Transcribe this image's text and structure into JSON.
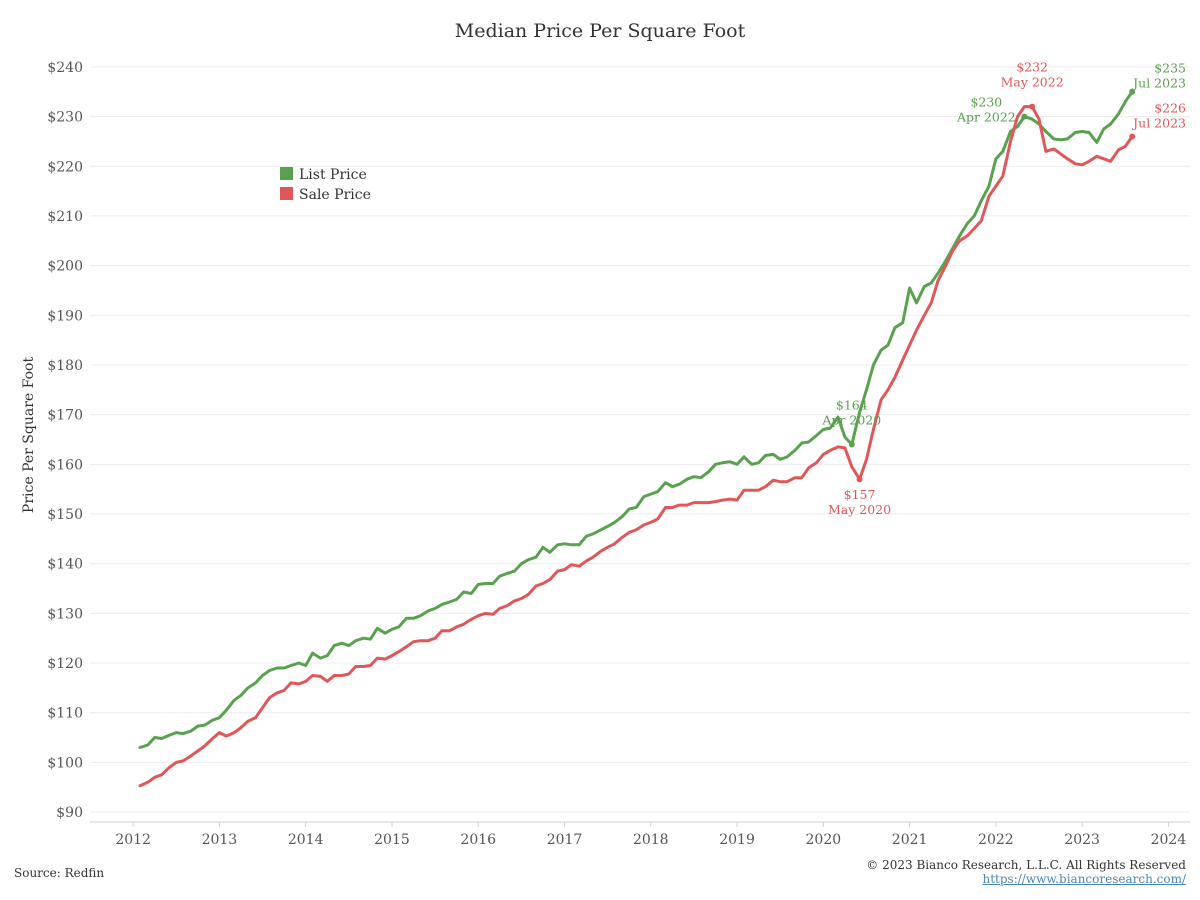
{
  "chart_data": {
    "type": "line",
    "title": "Median Price Per Square Foot",
    "xlabel": "",
    "ylabel": "Price Per Square Foot",
    "ylim": [
      88,
      243
    ],
    "xlim": [
      2011.5,
      2024.25
    ],
    "x_ticks": [
      "2012",
      "2013",
      "2014",
      "2015",
      "2016",
      "2017",
      "2018",
      "2019",
      "2020",
      "2021",
      "2022",
      "2023",
      "2024"
    ],
    "y_ticks": [
      "$90",
      "$100",
      "$110",
      "$120",
      "$130",
      "$140",
      "$150",
      "$160",
      "$170",
      "$180",
      "$190",
      "$200",
      "$210",
      "$220",
      "$230",
      "$240"
    ],
    "grid": true,
    "legend_position": "upper-left",
    "series": [
      {
        "name": "List Price",
        "color": "#59a14f",
        "x": [
          2012.08,
          2012.17,
          2012.25,
          2012.33,
          2012.42,
          2012.5,
          2012.58,
          2012.67,
          2012.75,
          2012.83,
          2012.92,
          2013.0,
          2013.08,
          2013.17,
          2013.25,
          2013.33,
          2013.42,
          2013.5,
          2013.58,
          2013.67,
          2013.75,
          2013.83,
          2013.92,
          2014.0,
          2014.08,
          2014.17,
          2014.25,
          2014.33,
          2014.42,
          2014.5,
          2014.58,
          2014.67,
          2014.75,
          2014.83,
          2014.92,
          2015.0,
          2015.08,
          2015.17,
          2015.25,
          2015.33,
          2015.42,
          2015.5,
          2015.58,
          2015.67,
          2015.75,
          2015.83,
          2015.92,
          2016.0,
          2016.08,
          2016.17,
          2016.25,
          2016.33,
          2016.42,
          2016.5,
          2016.58,
          2016.67,
          2016.75,
          2016.83,
          2016.92,
          2017.0,
          2017.08,
          2017.17,
          2017.25,
          2017.33,
          2017.42,
          2017.5,
          2017.58,
          2017.67,
          2017.75,
          2017.83,
          2017.92,
          2018.0,
          2018.08,
          2018.17,
          2018.25,
          2018.33,
          2018.42,
          2018.5,
          2018.58,
          2018.67,
          2018.75,
          2018.83,
          2018.92,
          2019.0,
          2019.08,
          2019.17,
          2019.25,
          2019.33,
          2019.42,
          2019.5,
          2019.58,
          2019.67,
          2019.75,
          2019.83,
          2019.92,
          2020.0,
          2020.08,
          2020.17,
          2020.25,
          2020.33,
          2020.42,
          2020.5,
          2020.58,
          2020.67,
          2020.75,
          2020.83,
          2020.92,
          2021.0,
          2021.08,
          2021.17,
          2021.25,
          2021.33,
          2021.42,
          2021.5,
          2021.58,
          2021.67,
          2021.75,
          2021.83,
          2021.92,
          2022.0,
          2022.08,
          2022.17,
          2022.25,
          2022.33,
          2022.42,
          2022.5,
          2022.58,
          2022.67,
          2022.75,
          2022.83,
          2022.92,
          2023.0,
          2023.08,
          2023.17,
          2023.25,
          2023.33,
          2023.42,
          2023.5,
          2023.58
        ],
        "values": [
          103,
          103.5,
          105,
          104.8,
          105.5,
          106,
          105.8,
          106.3,
          107.3,
          107.5,
          108.5,
          109,
          110.5,
          112.5,
          113.5,
          115,
          116,
          117.5,
          118.5,
          119,
          119,
          119.5,
          120,
          119.5,
          122,
          121,
          121.5,
          123.5,
          124,
          123.5,
          124.5,
          125,
          124.8,
          127,
          126,
          126.8,
          127.3,
          129,
          129,
          129.5,
          130.5,
          131,
          131.8,
          132.3,
          132.8,
          134.3,
          134,
          135.8,
          136,
          136,
          137.5,
          138,
          138.5,
          140,
          140.8,
          141.3,
          143.3,
          142.3,
          143.8,
          144,
          143.8,
          143.8,
          145.5,
          146,
          146.8,
          147.5,
          148.3,
          149.5,
          151,
          151.3,
          153.5,
          154,
          154.5,
          156.3,
          155.5,
          156,
          157,
          157.5,
          157.3,
          158.5,
          160,
          160.3,
          160.5,
          160,
          161.5,
          160,
          160.3,
          161.8,
          162,
          161,
          161.5,
          162.8,
          164.3,
          164.5,
          165.8,
          167,
          167.3,
          169.5,
          165.5,
          164,
          170.5,
          175,
          180,
          183,
          184,
          187.5,
          188.5,
          195.5,
          192.5,
          195.8,
          196.5,
          198.5,
          201,
          203.5,
          206,
          208.5,
          210,
          213,
          216,
          221.5,
          223,
          227,
          228,
          230,
          229.5,
          228.5,
          227,
          225.5,
          225.3,
          225.5,
          226.8,
          227,
          226.8,
          224.8,
          227.5,
          228.5,
          230.5,
          233,
          235
        ]
      },
      {
        "name": "Sale Price",
        "color": "#e15759",
        "x": [
          2012.08,
          2012.17,
          2012.25,
          2012.33,
          2012.42,
          2012.5,
          2012.58,
          2012.67,
          2012.75,
          2012.83,
          2012.92,
          2013.0,
          2013.08,
          2013.17,
          2013.25,
          2013.33,
          2013.42,
          2013.5,
          2013.58,
          2013.67,
          2013.75,
          2013.83,
          2013.92,
          2014.0,
          2014.08,
          2014.17,
          2014.25,
          2014.33,
          2014.42,
          2014.5,
          2014.58,
          2014.67,
          2014.75,
          2014.83,
          2014.92,
          2015.0,
          2015.08,
          2015.17,
          2015.25,
          2015.33,
          2015.42,
          2015.5,
          2015.58,
          2015.67,
          2015.75,
          2015.83,
          2015.92,
          2016.0,
          2016.08,
          2016.17,
          2016.25,
          2016.33,
          2016.42,
          2016.5,
          2016.58,
          2016.67,
          2016.75,
          2016.83,
          2016.92,
          2017.0,
          2017.08,
          2017.17,
          2017.25,
          2017.33,
          2017.42,
          2017.5,
          2017.58,
          2017.67,
          2017.75,
          2017.83,
          2017.92,
          2018.0,
          2018.08,
          2018.17,
          2018.25,
          2018.33,
          2018.42,
          2018.5,
          2018.58,
          2018.67,
          2018.75,
          2018.83,
          2018.92,
          2019.0,
          2019.08,
          2019.17,
          2019.25,
          2019.33,
          2019.42,
          2019.5,
          2019.58,
          2019.67,
          2019.75,
          2019.83,
          2019.92,
          2020.0,
          2020.08,
          2020.17,
          2020.25,
          2020.33,
          2020.42,
          2020.5,
          2020.58,
          2020.67,
          2020.75,
          2020.83,
          2020.92,
          2021.0,
          2021.08,
          2021.17,
          2021.25,
          2021.33,
          2021.42,
          2021.5,
          2021.58,
          2021.67,
          2021.75,
          2021.83,
          2021.92,
          2022.0,
          2022.08,
          2022.17,
          2022.25,
          2022.33,
          2022.42,
          2022.5,
          2022.58,
          2022.67,
          2022.75,
          2022.83,
          2022.92,
          2023.0,
          2023.08,
          2023.17,
          2023.25,
          2023.33,
          2023.42,
          2023.5,
          2023.58
        ],
        "values": [
          95.3,
          96,
          97,
          97.5,
          99,
          100,
          100.3,
          101.3,
          102.3,
          103.3,
          104.8,
          106,
          105.3,
          106,
          107,
          108.3,
          109,
          111,
          113,
          114,
          114.5,
          116,
          115.8,
          116.3,
          117.5,
          117.3,
          116.3,
          117.5,
          117.5,
          117.8,
          119.3,
          119.3,
          119.5,
          121,
          120.8,
          121.5,
          122.3,
          123.3,
          124.3,
          124.5,
          124.5,
          125,
          126.5,
          126.5,
          127.3,
          127.8,
          128.8,
          129.5,
          130,
          129.8,
          131,
          131.5,
          132.5,
          133,
          133.8,
          135.5,
          136,
          136.8,
          138.5,
          138.8,
          139.8,
          139.5,
          140.5,
          141.3,
          142.5,
          143.3,
          144,
          145.3,
          146.3,
          146.8,
          147.8,
          148.3,
          149,
          151.3,
          151.3,
          151.8,
          151.8,
          152.3,
          152.3,
          152.3,
          152.5,
          152.8,
          153,
          152.8,
          154.8,
          154.8,
          154.8,
          155.5,
          156.8,
          156.5,
          156.5,
          157.3,
          157.3,
          159.3,
          160.3,
          162,
          162.8,
          163.5,
          163.3,
          159.5,
          157,
          161,
          167,
          173,
          175,
          177.5,
          181,
          184,
          187,
          190,
          192.5,
          197,
          200,
          203,
          205,
          206,
          207.5,
          209,
          214,
          216,
          218,
          225,
          230,
          232,
          232,
          229.5,
          223,
          223.5,
          222.5,
          221.5,
          220.5,
          220.3,
          221,
          222,
          221.5,
          221,
          223.3,
          224,
          226
        ]
      }
    ],
    "annotations": [
      {
        "series": "List Price",
        "value": "$164",
        "date": "Apr 2020",
        "x": 2020.33,
        "y": 164,
        "color": "#59a14f",
        "position": "above"
      },
      {
        "series": "Sale Price",
        "value": "$157",
        "date": "May 2020",
        "x": 2020.42,
        "y": 157,
        "color": "#e15759",
        "position": "below"
      },
      {
        "series": "List Price",
        "value": "$230",
        "date": "Apr 2022",
        "x": 2022.33,
        "y": 230,
        "color": "#59a14f",
        "position": "left"
      },
      {
        "series": "Sale Price",
        "value": "$232",
        "date": "May 2022",
        "x": 2022.42,
        "y": 232,
        "color": "#e15759",
        "position": "above"
      },
      {
        "series": "List Price",
        "value": "$235",
        "date": "Jul 2023",
        "x": 2023.58,
        "y": 235,
        "color": "#59a14f",
        "position": "above-right"
      },
      {
        "series": "Sale Price",
        "value": "$226",
        "date": "Jul 2023",
        "x": 2023.58,
        "y": 226,
        "color": "#e15759",
        "position": "right"
      }
    ]
  },
  "footer": {
    "source": "Source: Redfin",
    "copyright": "© 2023 Bianco Research, L.L.C. All Rights Reserved",
    "url": "https://www.biancoresearch.com/"
  }
}
